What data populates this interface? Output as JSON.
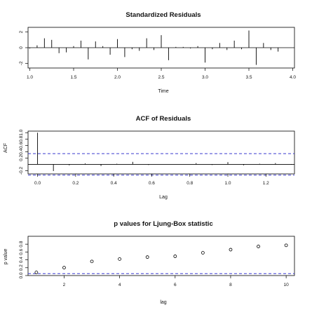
{
  "chart_data": [
    {
      "type": "line",
      "title": "Standardized Residuals",
      "xlabel": "Time",
      "ylabel": "",
      "xlim": [
        0.98,
        4.02
      ],
      "ylim": [
        -2.6,
        2.6
      ],
      "xticks": [
        "1.0",
        "1.5",
        "2.0",
        "2.5",
        "3.0",
        "3.5",
        "4.0"
      ],
      "yticks": [
        "-2",
        "0",
        "2"
      ],
      "style": "histogram-spikes",
      "x": [
        1.0,
        1.0833,
        1.1667,
        1.25,
        1.3333,
        1.4167,
        1.5,
        1.5833,
        1.6667,
        1.75,
        1.8333,
        1.9167,
        2.0,
        2.0833,
        2.1667,
        2.25,
        2.3333,
        2.4167,
        2.5,
        2.5833,
        2.6667,
        2.75,
        2.8333,
        2.9167,
        3.0,
        3.0833,
        3.1667,
        3.25,
        3.3333,
        3.4167,
        3.5,
        3.5833,
        3.6667,
        3.75,
        3.8333
      ],
      "values": [
        -0.1,
        0.3,
        1.2,
        1.0,
        -0.7,
        -0.6,
        0.2,
        0.9,
        -1.5,
        0.8,
        0.2,
        -0.9,
        1.1,
        -1.2,
        -0.2,
        -0.4,
        1.2,
        -0.3,
        1.6,
        -1.6,
        0.1,
        0.1,
        -0.1,
        0.2,
        -1.9,
        -0.2,
        0.6,
        -0.3,
        0.9,
        -0.2,
        2.2,
        -2.2,
        0.6,
        -0.3,
        -0.5
      ]
    },
    {
      "type": "bar",
      "title": "ACF of Residuals",
      "xlabel": "Lag",
      "ylabel": "ACF",
      "xlim": [
        -0.05,
        1.35
      ],
      "ylim": [
        -0.3,
        1.05
      ],
      "xticks": [
        "0.0",
        "0.2",
        "0.4",
        "0.6",
        "0.8",
        "1.0",
        "1.2"
      ],
      "yticks": [
        "-0.2",
        "0.2",
        "0.4",
        "0.6",
        "0.8",
        "1.0"
      ],
      "confidence_bounds": [
        -0.34,
        0.34
      ],
      "confidence_color": "#3b3bd0",
      "lags": [
        0.0,
        0.0833,
        0.1667,
        0.25,
        0.3333,
        0.4167,
        0.5,
        0.5833,
        0.6667,
        0.75,
        0.8333,
        0.9167,
        1.0,
        1.0833,
        1.1667,
        1.25,
        1.3333
      ],
      "values": [
        1.0,
        -0.21,
        -0.03,
        0.03,
        -0.05,
        0.02,
        0.08,
        -0.02,
        0.01,
        0.0,
        0.04,
        -0.02,
        0.07,
        -0.03,
        0.02,
        0.04,
        -0.01
      ]
    },
    {
      "type": "scatter",
      "title": "p values for Ljung-Box statistic",
      "xlabel": "lag",
      "ylabel": "p value",
      "xlim": [
        0.7,
        10.3
      ],
      "ylim": [
        0,
        1.0
      ],
      "xticks": [
        "2",
        "4",
        "6",
        "8",
        "10"
      ],
      "yticks": [
        "0.0",
        "0.2",
        "0.4",
        "0.6",
        "0.8"
      ],
      "reference_line": 0.05,
      "reference_color": "#3b3bd0",
      "x": [
        1,
        2,
        3,
        4,
        5,
        6,
        7,
        8,
        9,
        10
      ],
      "y": [
        0.08,
        0.2,
        0.36,
        0.42,
        0.47,
        0.49,
        0.58,
        0.66,
        0.74,
        0.77
      ]
    }
  ]
}
